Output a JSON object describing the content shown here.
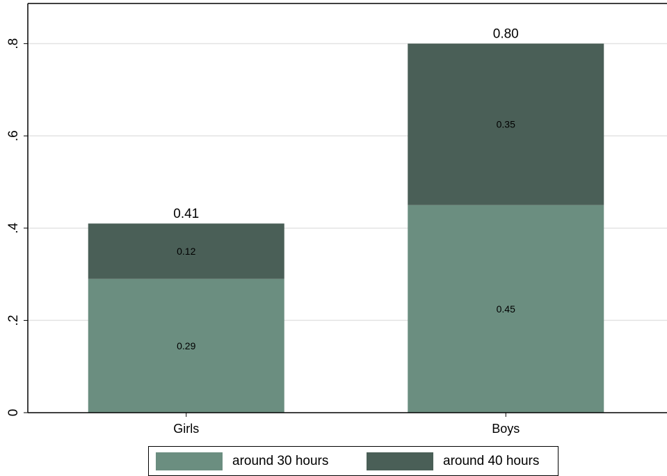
{
  "chart_data": {
    "type": "bar",
    "stacked": true,
    "categories": [
      "Girls",
      "Boys"
    ],
    "series": [
      {
        "name": "around 30 hours",
        "values": [
          0.29,
          0.45
        ],
        "color": "#6b8e80"
      },
      {
        "name": "around 40 hours",
        "values": [
          0.12,
          0.35
        ],
        "color": "#4a5f57"
      }
    ],
    "segment_labels": [
      [
        "0.29",
        "0.12"
      ],
      [
        "0.45",
        "0.35"
      ]
    ],
    "totals": [
      0.41,
      0.8
    ],
    "total_labels": [
      "0.41",
      "0.80"
    ],
    "yticks": [
      0,
      0.2,
      0.4,
      0.6,
      0.8
    ],
    "ytick_labels": [
      "0",
      ".2",
      ".4",
      ".6",
      ".8"
    ],
    "ylim": [
      0,
      0.887
    ],
    "grid": true,
    "legend_position": "bottom"
  }
}
